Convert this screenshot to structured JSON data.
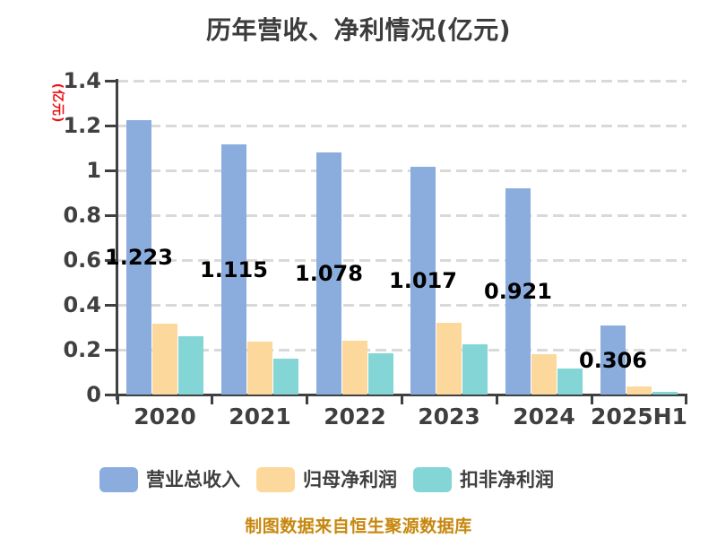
{
  "title": "历年营收、净利情况(亿元)",
  "y_axis_label": "(亿元)",
  "footer": {
    "caption": "制图数据来自恒生聚源数据库"
  },
  "colors": {
    "revenue_blue": "#8badde",
    "net_profit_orange": "#fdd89c",
    "deducted_profit_teal": "#84d6d6",
    "axis": "#404040",
    "gridline": "#d9d9d9",
    "value_label": "#000000",
    "y_axis_label_red": "#ee1111",
    "caption_gold": "#c7870e"
  },
  "chart_data": {
    "type": "bar",
    "title": "历年营收、净利情况(亿元)",
    "ylabel": "(亿元)",
    "xlabel": "",
    "categories": [
      "2020",
      "2021",
      "2022",
      "2023",
      "2024",
      "2025H1"
    ],
    "series": [
      {
        "name": "营业总收入",
        "color": "#8badde",
        "values": [
          1.223,
          1.115,
          1.078,
          1.017,
          0.921,
          0.306
        ],
        "data_labels": [
          "1.223",
          "1.115",
          "1.078",
          "1.017",
          "0.921",
          "0.306"
        ]
      },
      {
        "name": "归母净利润",
        "color": "#fdd89c",
        "values": [
          0.315,
          0.235,
          0.24,
          0.32,
          0.18,
          0.035
        ],
        "data_labels": null
      },
      {
        "name": "扣非净利润",
        "color": "#84d6d6",
        "values": [
          0.26,
          0.16,
          0.185,
          0.225,
          0.115,
          0.012
        ],
        "data_labels": null
      }
    ],
    "ylim": [
      0,
      1.4
    ],
    "ytick_values": [
      0,
      0.2,
      0.4,
      0.6,
      0.8,
      1,
      1.2,
      1.4
    ],
    "ytick_labels": [
      "0",
      "0.2",
      "0.4",
      "0.6",
      "0.8",
      "1",
      "1.2",
      "1.4"
    ],
    "grid": "horizontal-dashed",
    "legend_position": "bottom"
  }
}
